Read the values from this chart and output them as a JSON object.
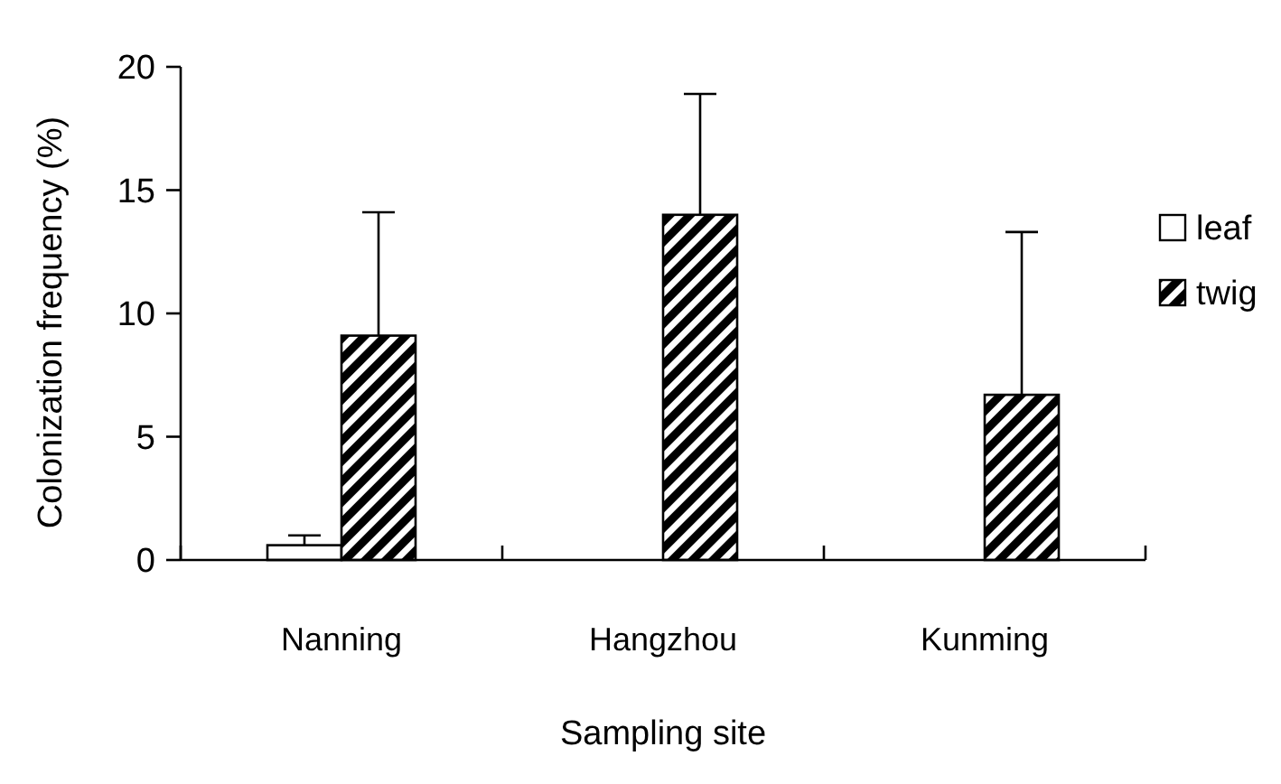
{
  "chart_data": {
    "type": "bar",
    "xlabel": "Sampling site",
    "ylabel": "Colonization frequency (%)",
    "categories": [
      "Nanning",
      "Hangzhou",
      "Kunming"
    ],
    "series": [
      {
        "name": "leaf",
        "color": "#ffffff",
        "values": [
          0.6,
          0,
          0
        ],
        "errors": [
          0.4,
          null,
          null
        ]
      },
      {
        "name": "twig",
        "color": "#000000",
        "values": [
          9.1,
          14.0,
          6.7
        ],
        "errors": [
          5.0,
          4.9,
          6.6
        ]
      }
    ],
    "ylim": [
      0,
      20
    ],
    "yticks": [
      0,
      5,
      10,
      15,
      20
    ],
    "grid": false,
    "legend": "right"
  }
}
